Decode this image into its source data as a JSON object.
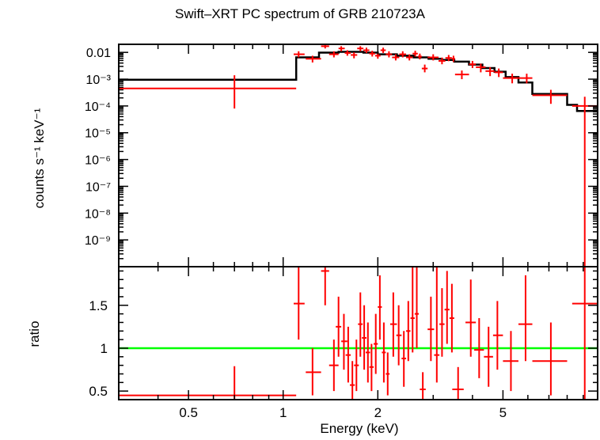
{
  "chart_data": [
    {
      "type": "line",
      "panel": "spectrum",
      "title": "Swift–XRT PC spectrum of GRB 210723A",
      "xlabel": "Energy (keV)",
      "ylabel": "counts s⁻¹ keV⁻¹",
      "xscale": "log",
      "yscale": "log",
      "xlim": [
        0.3,
        10
      ],
      "ylim": [
        1e-10,
        0.02
      ],
      "yticks": [
        {
          "value": 0.01,
          "label": "0.01"
        },
        {
          "value": 0.001,
          "label": "10⁻³"
        },
        {
          "value": 0.0001,
          "label": "10⁻⁴"
        },
        {
          "value": 1e-05,
          "label": "10⁻⁵"
        },
        {
          "value": 1e-06,
          "label": "10⁻⁶"
        },
        {
          "value": 1e-07,
          "label": "10⁻⁷"
        },
        {
          "value": 1e-08,
          "label": "10⁻⁸"
        },
        {
          "value": 1e-09,
          "label": "10⁻⁹"
        }
      ],
      "series": [
        {
          "name": "data",
          "color": "#ff0000",
          "points": [
            {
              "x": 0.7,
              "xlo": 0.3,
              "xhi": 1.1,
              "y": 0.00045,
              "ylo": 8e-05,
              "yhi": 0.0014
            },
            {
              "x": 1.12,
              "xlo": 1.08,
              "xhi": 1.17,
              "y": 0.0085,
              "ylo": 0.0065,
              "yhi": 0.011
            },
            {
              "x": 1.24,
              "xlo": 1.18,
              "xhi": 1.32,
              "y": 0.0058,
              "ylo": 0.0042,
              "yhi": 0.0075
            },
            {
              "x": 1.36,
              "xlo": 1.32,
              "xhi": 1.4,
              "y": 0.017,
              "ylo": 0.014,
              "yhi": 0.02
            },
            {
              "x": 1.45,
              "xlo": 1.4,
              "xhi": 1.5,
              "y": 0.0085,
              "ylo": 0.0065,
              "yhi": 0.011
            },
            {
              "x": 1.53,
              "xlo": 1.5,
              "xhi": 1.57,
              "y": 0.014,
              "ylo": 0.011,
              "yhi": 0.017
            },
            {
              "x": 1.6,
              "xlo": 1.57,
              "xhi": 1.64,
              "y": 0.0095,
              "ylo": 0.0075,
              "yhi": 0.012
            },
            {
              "x": 1.68,
              "xlo": 1.64,
              "xhi": 1.72,
              "y": 0.008,
              "ylo": 0.006,
              "yhi": 0.01
            },
            {
              "x": 1.76,
              "xlo": 1.72,
              "xhi": 1.8,
              "y": 0.014,
              "ylo": 0.011,
              "yhi": 0.017
            },
            {
              "x": 1.84,
              "xlo": 1.8,
              "xhi": 1.88,
              "y": 0.012,
              "ylo": 0.0095,
              "yhi": 0.015
            },
            {
              "x": 1.92,
              "xlo": 1.88,
              "xhi": 1.96,
              "y": 0.009,
              "ylo": 0.007,
              "yhi": 0.0115
            },
            {
              "x": 2.0,
              "xlo": 1.96,
              "xhi": 2.04,
              "y": 0.0075,
              "ylo": 0.0058,
              "yhi": 0.0095
            },
            {
              "x": 2.08,
              "xlo": 2.04,
              "xhi": 2.12,
              "y": 0.012,
              "ylo": 0.0095,
              "yhi": 0.015
            },
            {
              "x": 2.17,
              "xlo": 2.12,
              "xhi": 2.22,
              "y": 0.0085,
              "ylo": 0.0065,
              "yhi": 0.011
            },
            {
              "x": 2.28,
              "xlo": 2.22,
              "xhi": 2.34,
              "y": 0.0065,
              "ylo": 0.005,
              "yhi": 0.0085
            },
            {
              "x": 2.4,
              "xlo": 2.34,
              "xhi": 2.46,
              "y": 0.0085,
              "ylo": 0.0065,
              "yhi": 0.011
            },
            {
              "x": 2.52,
              "xlo": 2.46,
              "xhi": 2.58,
              "y": 0.0065,
              "ylo": 0.005,
              "yhi": 0.0085
            },
            {
              "x": 2.63,
              "xlo": 2.58,
              "xhi": 2.68,
              "y": 0.009,
              "ylo": 0.007,
              "yhi": 0.0115
            },
            {
              "x": 2.72,
              "xlo": 2.68,
              "xhi": 2.76,
              "y": 0.007,
              "ylo": 0.0055,
              "yhi": 0.009
            },
            {
              "x": 2.82,
              "xlo": 2.76,
              "xhi": 2.88,
              "y": 0.0025,
              "ylo": 0.0018,
              "yhi": 0.0035
            },
            {
              "x": 3.0,
              "xlo": 2.88,
              "xhi": 3.12,
              "y": 0.0065,
              "ylo": 0.005,
              "yhi": 0.0085
            },
            {
              "x": 3.2,
              "xlo": 3.12,
              "xhi": 3.28,
              "y": 0.0048,
              "ylo": 0.0036,
              "yhi": 0.0064
            },
            {
              "x": 3.36,
              "xlo": 3.28,
              "xhi": 3.44,
              "y": 0.0062,
              "ylo": 0.0047,
              "yhi": 0.008
            },
            {
              "x": 3.48,
              "xlo": 3.44,
              "xhi": 3.52,
              "y": 0.0058,
              "ylo": 0.0044,
              "yhi": 0.0075
            },
            {
              "x": 3.7,
              "xlo": 3.52,
              "xhi": 3.9,
              "y": 0.0015,
              "ylo": 0.001,
              "yhi": 0.0021
            },
            {
              "x": 4.0,
              "xlo": 3.9,
              "xhi": 4.1,
              "y": 0.0036,
              "ylo": 0.0026,
              "yhi": 0.0048
            },
            {
              "x": 4.25,
              "xlo": 4.1,
              "xhi": 4.4,
              "y": 0.0028,
              "ylo": 0.0018,
              "yhi": 0.0038
            },
            {
              "x": 4.55,
              "xlo": 4.4,
              "xhi": 4.7,
              "y": 0.002,
              "ylo": 0.0013,
              "yhi": 0.0028
            },
            {
              "x": 4.85,
              "xlo": 4.7,
              "xhi": 5.0,
              "y": 0.0018,
              "ylo": 0.0012,
              "yhi": 0.0025
            },
            {
              "x": 5.35,
              "xlo": 5.0,
              "xhi": 5.7,
              "y": 0.0011,
              "ylo": 0.0007,
              "yhi": 0.0016
            },
            {
              "x": 5.95,
              "xlo": 5.7,
              "xhi": 6.2,
              "y": 0.0011,
              "ylo": 0.0007,
              "yhi": 0.0016
            },
            {
              "x": 7.1,
              "xlo": 6.2,
              "xhi": 8.0,
              "y": 0.00025,
              "ylo": 0.00012,
              "yhi": 0.0004
            },
            {
              "x": 9.1,
              "xlo": 8.3,
              "xhi": 10.0,
              "y": 0.0001,
              "ylo": 1e-10,
              "yhi": 0.00022
            }
          ]
        },
        {
          "name": "model",
          "color": "#000000",
          "steps": [
            {
              "xlo": 0.3,
              "xhi": 1.1,
              "y": 0.00095
            },
            {
              "xlo": 1.1,
              "xhi": 1.3,
              "y": 0.0065
            },
            {
              "xlo": 1.3,
              "xhi": 1.5,
              "y": 0.0098
            },
            {
              "xlo": 1.5,
              "xhi": 1.8,
              "y": 0.0105
            },
            {
              "xlo": 1.8,
              "xhi": 2.0,
              "y": 0.0098
            },
            {
              "xlo": 2.0,
              "xhi": 2.3,
              "y": 0.0085
            },
            {
              "xlo": 2.3,
              "xhi": 2.6,
              "y": 0.0075
            },
            {
              "xlo": 2.6,
              "xhi": 2.9,
              "y": 0.0065
            },
            {
              "xlo": 2.9,
              "xhi": 3.2,
              "y": 0.0058
            },
            {
              "xlo": 3.2,
              "xhi": 3.5,
              "y": 0.0052
            },
            {
              "xlo": 3.5,
              "xhi": 3.9,
              "y": 0.0045
            },
            {
              "xlo": 3.9,
              "xhi": 4.3,
              "y": 0.0035
            },
            {
              "xlo": 4.3,
              "xhi": 4.7,
              "y": 0.0026
            },
            {
              "xlo": 4.7,
              "xhi": 5.1,
              "y": 0.0019
            },
            {
              "xlo": 5.1,
              "xhi": 5.6,
              "y": 0.0012
            },
            {
              "xlo": 5.6,
              "xhi": 6.2,
              "y": 0.00075
            },
            {
              "xlo": 6.2,
              "xhi": 8.0,
              "y": 0.00028
            },
            {
              "xlo": 8.0,
              "xhi": 8.6,
              "y": 0.00011
            },
            {
              "xlo": 8.6,
              "xhi": 10.0,
              "y": 6.5e-05
            }
          ]
        }
      ]
    },
    {
      "type": "scatter",
      "panel": "ratio",
      "xlabel": "Energy (keV)",
      "ylabel": "ratio",
      "xscale": "log",
      "yscale": "linear",
      "xlim": [
        0.3,
        10
      ],
      "ylim": [
        0.4,
        1.95
      ],
      "xticks": [
        {
          "value": 0.5,
          "label": "0.5"
        },
        {
          "value": 1,
          "label": "1"
        },
        {
          "value": 2,
          "label": "2"
        },
        {
          "value": 5,
          "label": "5"
        }
      ],
      "yticks": [
        {
          "value": 0.5,
          "label": "0.5"
        },
        {
          "value": 1,
          "label": "1"
        },
        {
          "value": 1.5,
          "label": "1.5"
        }
      ],
      "reference_line": {
        "y": 1,
        "color": "#00ff00"
      },
      "series": [
        {
          "name": "ratio",
          "color": "#ff0000",
          "points": [
            {
              "x": 0.7,
              "xlo": 0.3,
              "xhi": 1.1,
              "y": 0.45,
              "ylo": 0.4,
              "yhi": 0.79
            },
            {
              "x": 1.12,
              "xlo": 1.08,
              "xhi": 1.17,
              "y": 1.52,
              "ylo": 1.1,
              "yhi": 1.95
            },
            {
              "x": 1.24,
              "xlo": 1.18,
              "xhi": 1.32,
              "y": 0.72,
              "ylo": 0.45,
              "yhi": 1.0
            },
            {
              "x": 1.36,
              "xlo": 1.32,
              "xhi": 1.4,
              "y": 1.9,
              "ylo": 1.5,
              "yhi": 1.95
            },
            {
              "x": 1.45,
              "xlo": 1.4,
              "xhi": 1.5,
              "y": 0.8,
              "ylo": 0.5,
              "yhi": 1.1
            },
            {
              "x": 1.5,
              "xlo": 1.47,
              "xhi": 1.53,
              "y": 1.25,
              "ylo": 0.9,
              "yhi": 1.6
            },
            {
              "x": 1.56,
              "xlo": 1.53,
              "xhi": 1.6,
              "y": 1.08,
              "ylo": 0.75,
              "yhi": 1.4
            },
            {
              "x": 1.61,
              "xlo": 1.58,
              "xhi": 1.64,
              "y": 0.92,
              "ylo": 0.6,
              "yhi": 1.25
            },
            {
              "x": 1.66,
              "xlo": 1.63,
              "xhi": 1.69,
              "y": 0.57,
              "ylo": 0.4,
              "yhi": 0.85
            },
            {
              "x": 1.71,
              "xlo": 1.68,
              "xhi": 1.74,
              "y": 0.8,
              "ylo": 0.5,
              "yhi": 1.1
            },
            {
              "x": 1.76,
              "xlo": 1.73,
              "xhi": 1.79,
              "y": 1.28,
              "ylo": 0.9,
              "yhi": 1.65
            },
            {
              "x": 1.81,
              "xlo": 1.78,
              "xhi": 1.84,
              "y": 1.12,
              "ylo": 0.75,
              "yhi": 1.5
            },
            {
              "x": 1.86,
              "xlo": 1.83,
              "xhi": 1.89,
              "y": 0.95,
              "ylo": 0.6,
              "yhi": 1.3
            },
            {
              "x": 1.91,
              "xlo": 1.88,
              "xhi": 1.94,
              "y": 0.78,
              "ylo": 0.5,
              "yhi": 1.05
            },
            {
              "x": 1.97,
              "xlo": 1.94,
              "xhi": 2.0,
              "y": 1.05,
              "ylo": 0.7,
              "yhi": 1.4
            },
            {
              "x": 2.03,
              "xlo": 2.0,
              "xhi": 2.06,
              "y": 1.48,
              "ylo": 1.1,
              "yhi": 1.85
            },
            {
              "x": 2.09,
              "xlo": 2.06,
              "xhi": 2.12,
              "y": 0.95,
              "ylo": 0.6,
              "yhi": 1.3
            },
            {
              "x": 2.15,
              "xlo": 2.12,
              "xhi": 2.18,
              "y": 0.7,
              "ylo": 0.45,
              "yhi": 0.95
            },
            {
              "x": 2.24,
              "xlo": 2.19,
              "xhi": 2.3,
              "y": 1.28,
              "ylo": 0.9,
              "yhi": 1.65
            },
            {
              "x": 2.33,
              "xlo": 2.29,
              "xhi": 2.38,
              "y": 1.15,
              "ylo": 0.8,
              "yhi": 1.5
            },
            {
              "x": 2.42,
              "xlo": 2.38,
              "xhi": 2.46,
              "y": 0.88,
              "ylo": 0.55,
              "yhi": 1.2
            },
            {
              "x": 2.5,
              "xlo": 2.46,
              "xhi": 2.54,
              "y": 1.2,
              "ylo": 0.85,
              "yhi": 1.55
            },
            {
              "x": 2.58,
              "xlo": 2.54,
              "xhi": 2.62,
              "y": 1.35,
              "ylo": 0.95,
              "yhi": 1.95
            },
            {
              "x": 2.66,
              "xlo": 2.62,
              "xhi": 2.7,
              "y": 1.4,
              "ylo": 1.0,
              "yhi": 1.95
            },
            {
              "x": 2.78,
              "xlo": 2.72,
              "xhi": 2.84,
              "y": 0.52,
              "ylo": 0.4,
              "yhi": 0.72
            },
            {
              "x": 2.95,
              "xlo": 2.88,
              "xhi": 3.02,
              "y": 1.22,
              "ylo": 0.85,
              "yhi": 1.6
            },
            {
              "x": 3.08,
              "xlo": 3.02,
              "xhi": 3.14,
              "y": 0.92,
              "ylo": 0.6,
              "yhi": 1.95
            },
            {
              "x": 3.2,
              "xlo": 3.14,
              "xhi": 3.26,
              "y": 1.28,
              "ylo": 0.9,
              "yhi": 1.7
            },
            {
              "x": 3.32,
              "xlo": 3.26,
              "xhi": 3.38,
              "y": 1.45,
              "ylo": 1.05,
              "yhi": 1.9
            },
            {
              "x": 3.44,
              "xlo": 3.38,
              "xhi": 3.5,
              "y": 1.35,
              "ylo": 0.95,
              "yhi": 1.75
            },
            {
              "x": 3.6,
              "xlo": 3.45,
              "xhi": 3.75,
              "y": 0.52,
              "ylo": 0.4,
              "yhi": 0.78
            },
            {
              "x": 3.95,
              "xlo": 3.8,
              "xhi": 4.1,
              "y": 1.3,
              "ylo": 0.9,
              "yhi": 1.8
            },
            {
              "x": 4.2,
              "xlo": 4.05,
              "xhi": 4.35,
              "y": 0.98,
              "ylo": 0.65,
              "yhi": 1.35
            },
            {
              "x": 4.5,
              "xlo": 4.35,
              "xhi": 4.65,
              "y": 0.9,
              "ylo": 0.55,
              "yhi": 1.25
            },
            {
              "x": 4.8,
              "xlo": 4.65,
              "xhi": 5.0,
              "y": 1.15,
              "ylo": 0.75,
              "yhi": 1.55
            },
            {
              "x": 5.3,
              "xlo": 5.0,
              "xhi": 5.6,
              "y": 0.85,
              "ylo": 0.5,
              "yhi": 1.2
            },
            {
              "x": 5.9,
              "xlo": 5.6,
              "xhi": 6.2,
              "y": 1.28,
              "ylo": 0.85,
              "yhi": 1.85
            },
            {
              "x": 7.1,
              "xlo": 6.2,
              "xhi": 8.0,
              "y": 0.85,
              "ylo": 0.45,
              "yhi": 1.3
            },
            {
              "x": 9.1,
              "xlo": 8.3,
              "xhi": 10.0,
              "y": 1.52,
              "ylo": 0.4,
              "yhi": 1.95
            }
          ]
        }
      ]
    }
  ]
}
